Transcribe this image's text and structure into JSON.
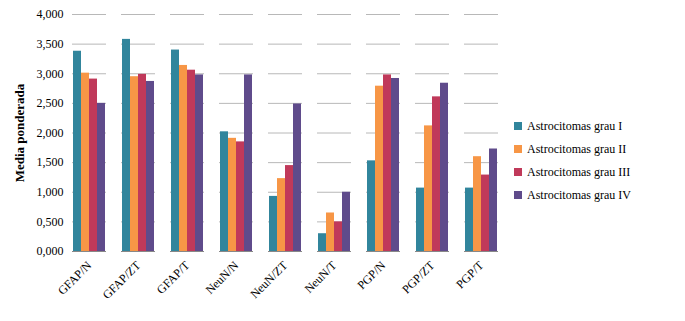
{
  "chart_data": {
    "type": "bar",
    "y_label": "Media ponderada",
    "categories": [
      "GFAP/N",
      "GFAP/ZT",
      "GFAP/T",
      "NeuN/N",
      "NeuN/ZT",
      "NeuN/T",
      "PGP/N",
      "PGP/ZT",
      "PGP/T"
    ],
    "series": [
      {
        "name": "Astrocitomas grau I",
        "color": "#31859c",
        "values": [
          3.38,
          3.58,
          3.4,
          2.02,
          0.93,
          0.3,
          1.53,
          1.07,
          1.07
        ]
      },
      {
        "name": "Astrocitomas grau II",
        "color": "#f79646",
        "values": [
          3.01,
          2.95,
          3.14,
          1.91,
          1.23,
          0.65,
          2.79,
          2.12,
          1.6
        ]
      },
      {
        "name": "Astrocitomas grau III",
        "color": "#c0395a",
        "values": [
          2.91,
          2.99,
          3.06,
          1.85,
          1.45,
          0.5,
          2.98,
          2.61,
          1.29
        ]
      },
      {
        "name": "Astrocitomas grau IV",
        "color": "#5f4b8b",
        "values": [
          2.5,
          2.87,
          2.98,
          2.98,
          2.49,
          1.0,
          2.92,
          2.84,
          1.73
        ]
      }
    ],
    "ylim": [
      0,
      4
    ],
    "yticks": [
      {
        "value": 0,
        "label": "0,000"
      },
      {
        "value": 0.5,
        "label": "0,500"
      },
      {
        "value": 1,
        "label": "1,000"
      },
      {
        "value": 1.5,
        "label": "1,500"
      },
      {
        "value": 2,
        "label": "2,000"
      },
      {
        "value": 2.5,
        "label": "2,500"
      },
      {
        "value": 3,
        "label": "3,000"
      },
      {
        "value": 3.5,
        "label": "3,500"
      },
      {
        "value": 4,
        "label": "4,000"
      }
    ],
    "grid": true,
    "legend": "right"
  }
}
